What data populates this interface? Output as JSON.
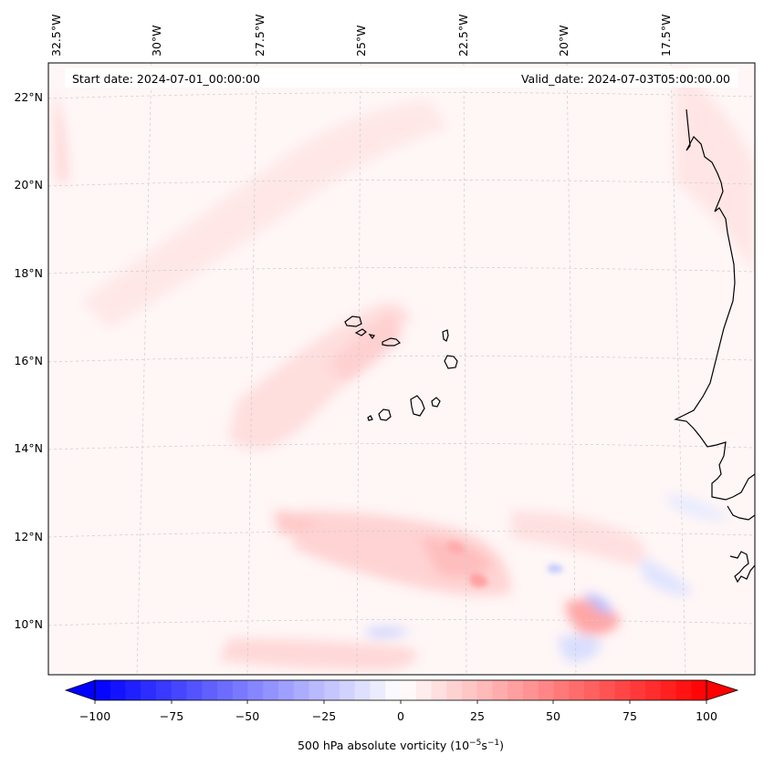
{
  "header": {
    "start_date": "Start date: 2024-07-01_00:00:00",
    "valid_date": "Valid_date: 2024-07-03T05:00:00.00"
  },
  "axes": {
    "longitude_labels": [
      "32.5°W",
      "30°W",
      "27.5°W",
      "25°W",
      "22.5°W",
      "20°W",
      "17.5°W"
    ],
    "latitude_labels": [
      "22°N",
      "20°N",
      "18°N",
      "16°N",
      "14°N",
      "12°N",
      "10°N"
    ]
  },
  "colorbar": {
    "label_text": "500 hPa absolute vorticity (10",
    "label_exp1": "−5",
    "label_mid": "s",
    "label_exp2": "−1",
    "label_close": ")",
    "ticks": [
      "−100",
      "−75",
      "−50",
      "−25",
      "0",
      "25",
      "50",
      "75",
      "100"
    ],
    "min": -100,
    "max": 100,
    "neg_color": "#0000ff",
    "pos_color": "#ff0000"
  },
  "map": {
    "background_color": "#fff6f6",
    "coastline_color": "#000000",
    "grid_color": "#cccccc"
  }
}
